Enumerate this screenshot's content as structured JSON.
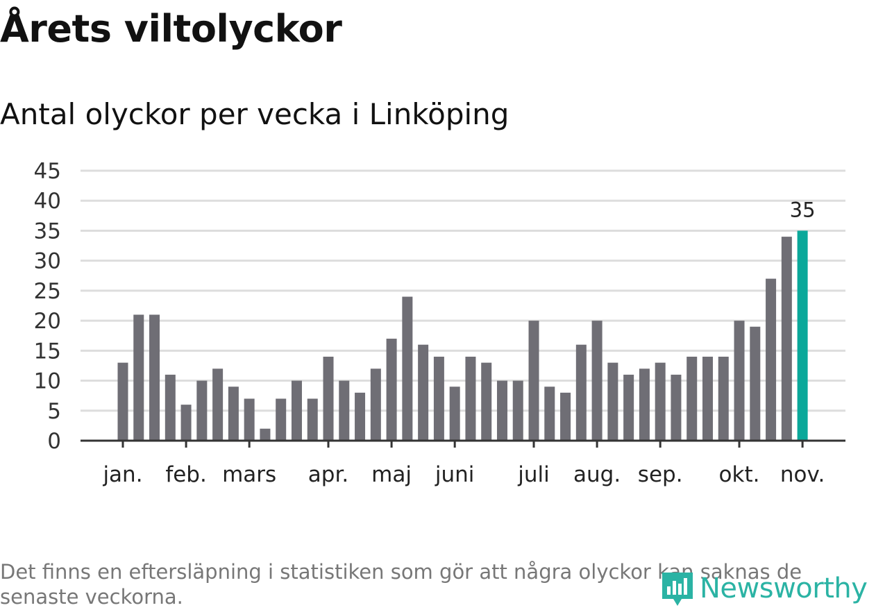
{
  "header": {
    "title": "Årets viltolyckor",
    "subtitle": "Antal olyckor per vecka i Linköping"
  },
  "footnote": "Det finns en eftersläpning i statistiken som gör att några olyckor kan saknas de senaste veckorna.",
  "brand": {
    "name": "Newsworthy",
    "color": "#2bb3a4",
    "icon": "newsworthy-logo-icon"
  },
  "colors": {
    "bar": "#6f6e75",
    "highlight": "#0aa89a",
    "grid": "#dddddd",
    "axis": "#333333"
  },
  "chart_data": {
    "type": "bar",
    "title": "Antal olyckor per vecka i Linköping",
    "xlabel": "",
    "ylabel": "",
    "ylim": [
      0,
      45
    ],
    "yticks": [
      0,
      5,
      10,
      15,
      20,
      25,
      30,
      35,
      40,
      45
    ],
    "grid": true,
    "values": [
      13,
      21,
      21,
      11,
      6,
      10,
      12,
      9,
      7,
      2,
      7,
      10,
      7,
      14,
      10,
      8,
      12,
      17,
      24,
      16,
      14,
      9,
      14,
      13,
      10,
      10,
      20,
      9,
      8,
      16,
      20,
      13,
      11,
      12,
      13,
      11,
      14,
      14,
      14,
      20,
      19,
      27,
      34,
      35
    ],
    "highlight_index": 43,
    "highlight_label": "35",
    "month_ticks": [
      {
        "label": "jan.",
        "bar_index": 0
      },
      {
        "label": "feb.",
        "bar_index": 4
      },
      {
        "label": "mars",
        "bar_index": 8
      },
      {
        "label": "apr.",
        "bar_index": 13
      },
      {
        "label": "maj",
        "bar_index": 17
      },
      {
        "label": "juni",
        "bar_index": 21
      },
      {
        "label": "juli",
        "bar_index": 26
      },
      {
        "label": "aug.",
        "bar_index": 30
      },
      {
        "label": "sep.",
        "bar_index": 34
      },
      {
        "label": "okt.",
        "bar_index": 39
      },
      {
        "label": "nov.",
        "bar_index": 43
      }
    ]
  }
}
